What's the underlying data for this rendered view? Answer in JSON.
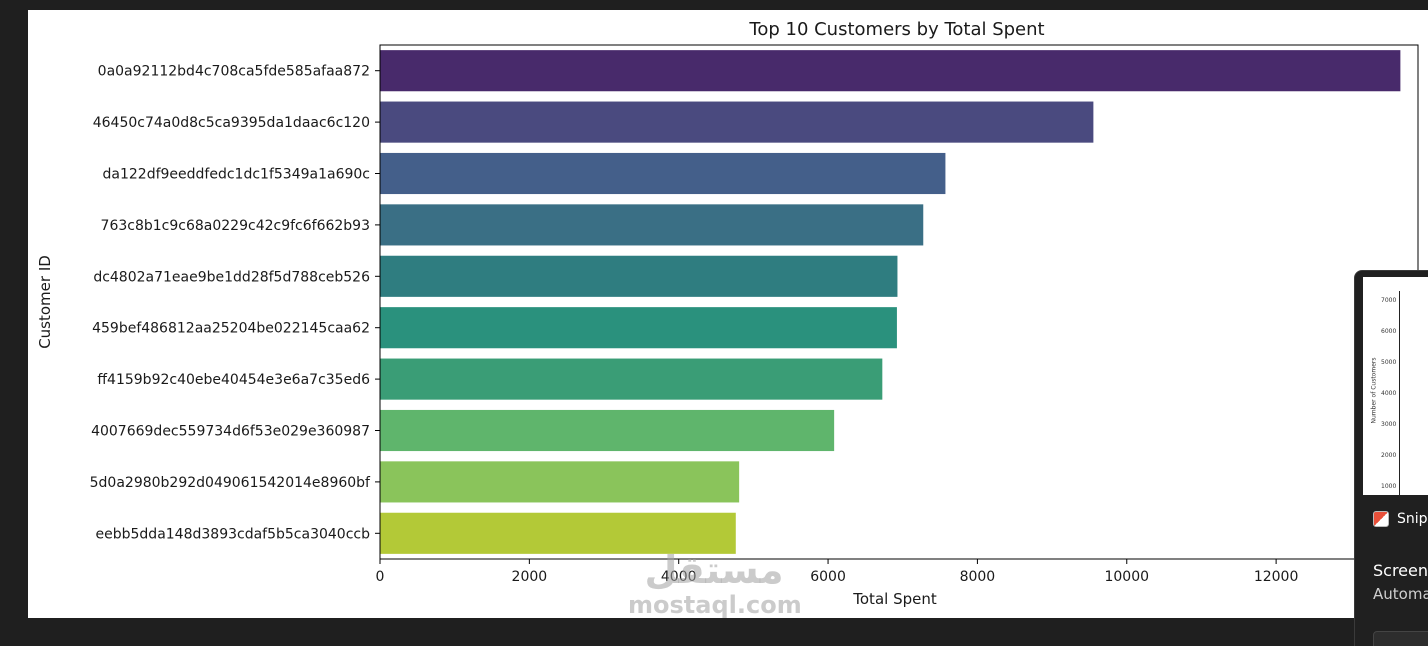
{
  "chart_data": {
    "type": "bar",
    "orientation": "horizontal",
    "title": "Top 10 Customers by Total Spent",
    "xlabel": "Total Spent",
    "ylabel": "Customer ID",
    "xlim": [
      0,
      13900
    ],
    "xticks": [
      0,
      2000,
      4000,
      6000,
      8000,
      10000,
      12000
    ],
    "grid": false,
    "categories": [
      "0a0a92112bd4c708ca5fde585afaa872",
      "46450c74a0d8c5ca9395da1daac6c120",
      "da122df9eeddfedc1dc1f5349a1a690c",
      "763c8b1c9c68a0229c42c9fc6f662b93",
      "dc4802a71eae9be1dd28f5d788ceb526",
      "459bef486812aa25204be022145caa62",
      "ff4159b92c40ebe40454e3e6a7c35ed6",
      "4007669dec559734d6f53e029e360987",
      "5d0a2980b292d049061542014e8960bf",
      "eebb5dda148d3893cdaf5b5ca3040ccb"
    ],
    "values": [
      13664.08,
      9553.02,
      7571.63,
      7274.88,
      6929.31,
      6922.21,
      6726.66,
      6081.54,
      4809.44,
      4764.34
    ],
    "colors": [
      "#482a6b",
      "#4a4a7f",
      "#445f8a",
      "#3a6f85",
      "#2f7d80",
      "#2a917d",
      "#3a9d76",
      "#5fb56c",
      "#8ac45b",
      "#b3c937"
    ]
  },
  "watermark": {
    "arabic": "مستقل",
    "latin": "mostaql.com"
  },
  "snip_notification": {
    "app_name": "Snip",
    "title": "Screens",
    "subtitle": "Automa",
    "thumbnail": {
      "ylabel": "Number of Customers",
      "ticks": [
        "7000",
        "6000",
        "5000",
        "4000",
        "3000",
        "2000",
        "1000"
      ]
    }
  }
}
